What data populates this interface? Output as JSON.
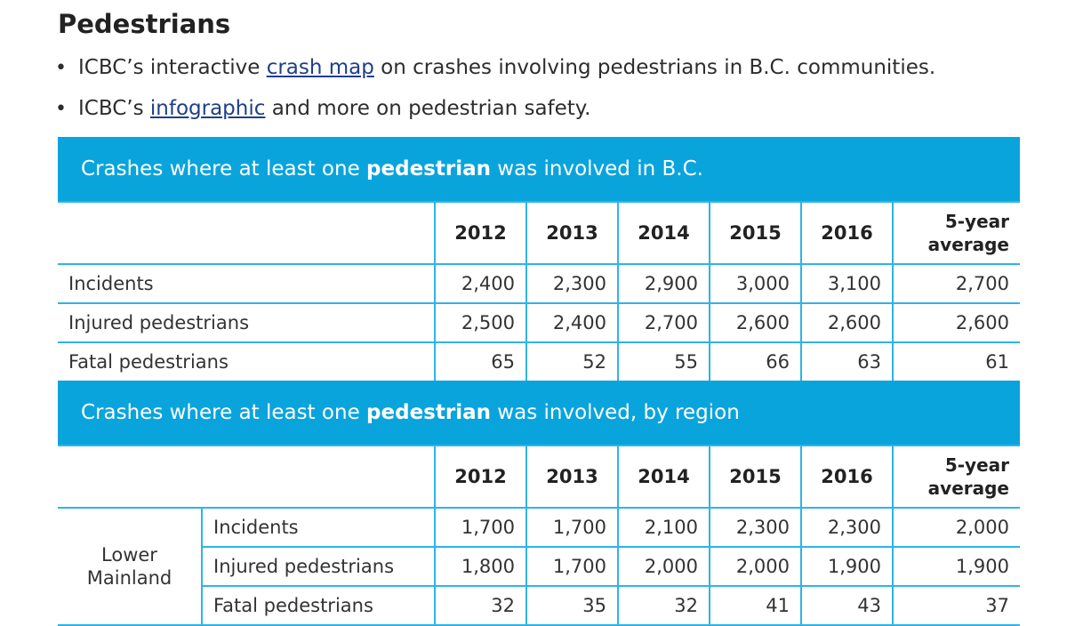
{
  "heading": "Pedestrians",
  "bullets": [
    {
      "pre": "ICBC’s interactive ",
      "link": "crash map",
      "post": " on crashes involving pedestrians in B.C. communities."
    },
    {
      "pre": "ICBC’s ",
      "link": "infographic",
      "post": " and more on pedestrian safety."
    }
  ],
  "table1": {
    "title_pre": "Crashes where at least one ",
    "title_bold": "pedestrian",
    "title_post": " was involved in B.C.",
    "columns": [
      "2012",
      "2013",
      "2014",
      "2015",
      "2016"
    ],
    "avg_header": [
      "5-year",
      "average"
    ],
    "rows": [
      {
        "label": "Incidents",
        "values": [
          "2,400",
          "2,300",
          "2,900",
          "3,000",
          "3,100",
          "2,700"
        ]
      },
      {
        "label": "Injured pedestrians",
        "values": [
          "2,500",
          "2,400",
          "2,700",
          "2,600",
          "2,600",
          "2,600"
        ]
      },
      {
        "label": "Fatal pedestrians",
        "values": [
          "65",
          "52",
          "55",
          "66",
          "63",
          "61"
        ]
      }
    ]
  },
  "table2": {
    "title_pre": "Crashes where at least one ",
    "title_bold": "pedestrian",
    "title_post": " was involved, by region",
    "columns": [
      "2012",
      "2013",
      "2014",
      "2015",
      "2016"
    ],
    "avg_header": [
      "5-year",
      "average"
    ],
    "region": [
      "Lower",
      "Mainland"
    ],
    "rows": [
      {
        "label": "Incidents",
        "values": [
          "1,700",
          "1,700",
          "2,100",
          "2,300",
          "2,300",
          "2,000"
        ]
      },
      {
        "label": "Injured pedestrians",
        "values": [
          "1,800",
          "1,700",
          "2,000",
          "2,000",
          "1,900",
          "1,900"
        ]
      },
      {
        "label": "Fatal pedestrians",
        "values": [
          "32",
          "35",
          "32",
          "41",
          "43",
          "37"
        ]
      }
    ]
  }
}
